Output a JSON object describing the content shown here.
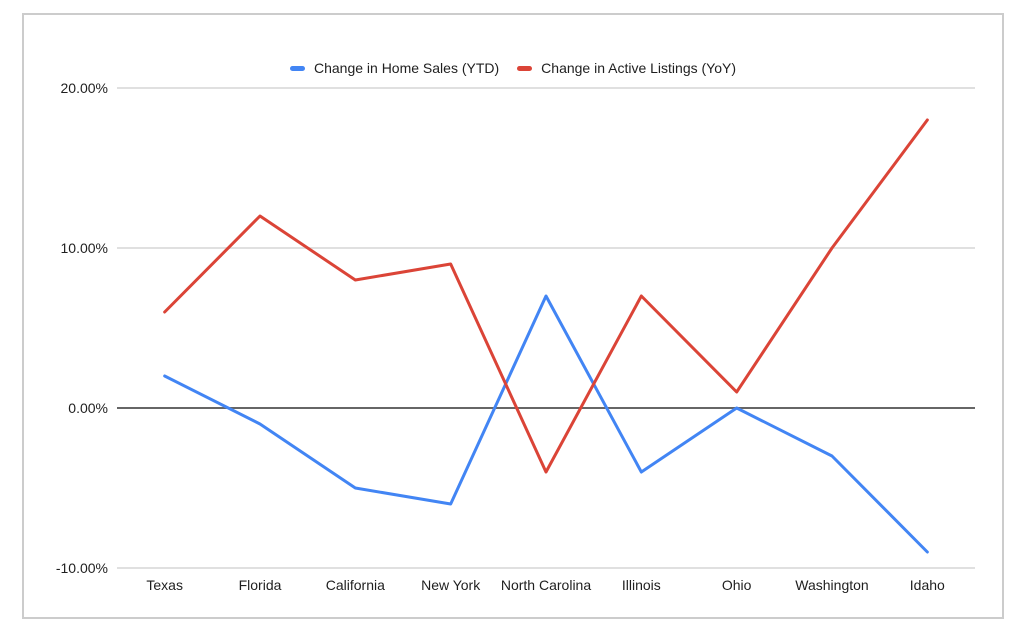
{
  "legend": {
    "items": [
      {
        "id": "home-sales",
        "label": "Change in Home Sales (YTD)",
        "color": "#4285F4"
      },
      {
        "id": "active-listings",
        "label": "Change in Active Listings (YoY)",
        "color": "#DB4437"
      }
    ]
  },
  "chart_data": {
    "type": "line",
    "title": "",
    "xlabel": "",
    "ylabel": "",
    "unit": "%",
    "categories": [
      "Texas",
      "Florida",
      "California",
      "New York",
      "North Carolina",
      "Illinois",
      "Ohio",
      "Washington",
      "Idaho"
    ],
    "series": [
      {
        "name": "Change in Home Sales (YTD)",
        "color": "#4285F4",
        "values": [
          2,
          -1,
          -5,
          -6,
          7,
          -4,
          0,
          -3,
          -9
        ]
      },
      {
        "name": "Change in Active Listings (YoY)",
        "color": "#DB4437",
        "values": [
          6,
          12,
          8,
          9,
          -4,
          7,
          1,
          10,
          18
        ]
      }
    ],
    "ylim": [
      -10,
      20
    ],
    "y_ticks": [
      {
        "value": 20,
        "label": "20.00%"
      },
      {
        "value": 10,
        "label": "10.00%"
      },
      {
        "value": 0,
        "label": "0.00%"
      },
      {
        "value": -10,
        "label": "-10.00%"
      }
    ],
    "grid": true,
    "legend_position": "top",
    "zero_baseline": true
  },
  "colors": {
    "background": "#ffffff",
    "canvas_border": "#cccccc",
    "grid": "#e0e0e0",
    "zero_line": "#666666",
    "axis_text": "#1f1f1f"
  }
}
